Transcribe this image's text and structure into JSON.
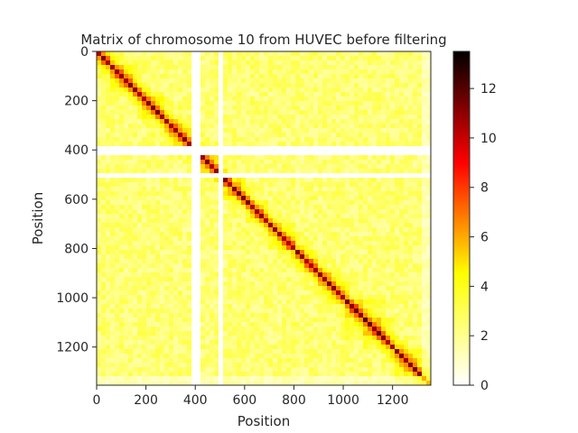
{
  "chart_data": {
    "type": "heatmap",
    "title": "Matrix of chromosome 10 from HUVEC before filtering",
    "xlabel": "Position",
    "ylabel": "Position",
    "size": 1355,
    "xlim": [
      0,
      1355
    ],
    "ylim": [
      1355,
      0
    ],
    "x_ticks": [
      0,
      200,
      400,
      600,
      800,
      1000,
      1200
    ],
    "y_ticks": [
      0,
      200,
      400,
      600,
      800,
      1000,
      1200
    ],
    "colormap": "hot_r",
    "colormap_stops": [
      "#ffffff",
      "#ffff00",
      "#ff0000",
      "#000000"
    ],
    "color_range": [
      0,
      13.5
    ],
    "colorbar_ticks": [
      0,
      2,
      4,
      6,
      8,
      10,
      12
    ],
    "diagonal_max": 11.5,
    "domains": [
      [
        0,
        60
      ],
      [
        60,
        170
      ],
      [
        170,
        280
      ],
      [
        280,
        385
      ],
      [
        430,
        520
      ],
      [
        520,
        600
      ],
      [
        600,
        690
      ],
      [
        690,
        800
      ],
      [
        800,
        900
      ],
      [
        900,
        1000
      ],
      [
        1000,
        1075
      ],
      [
        1075,
        1200
      ],
      [
        1200,
        1355
      ]
    ],
    "blank_bands": [
      [
        385,
        420
      ],
      [
        472,
        480
      ],
      [
        488,
        493
      ],
      [
        500,
        504
      ]
    ],
    "grid": false
  }
}
